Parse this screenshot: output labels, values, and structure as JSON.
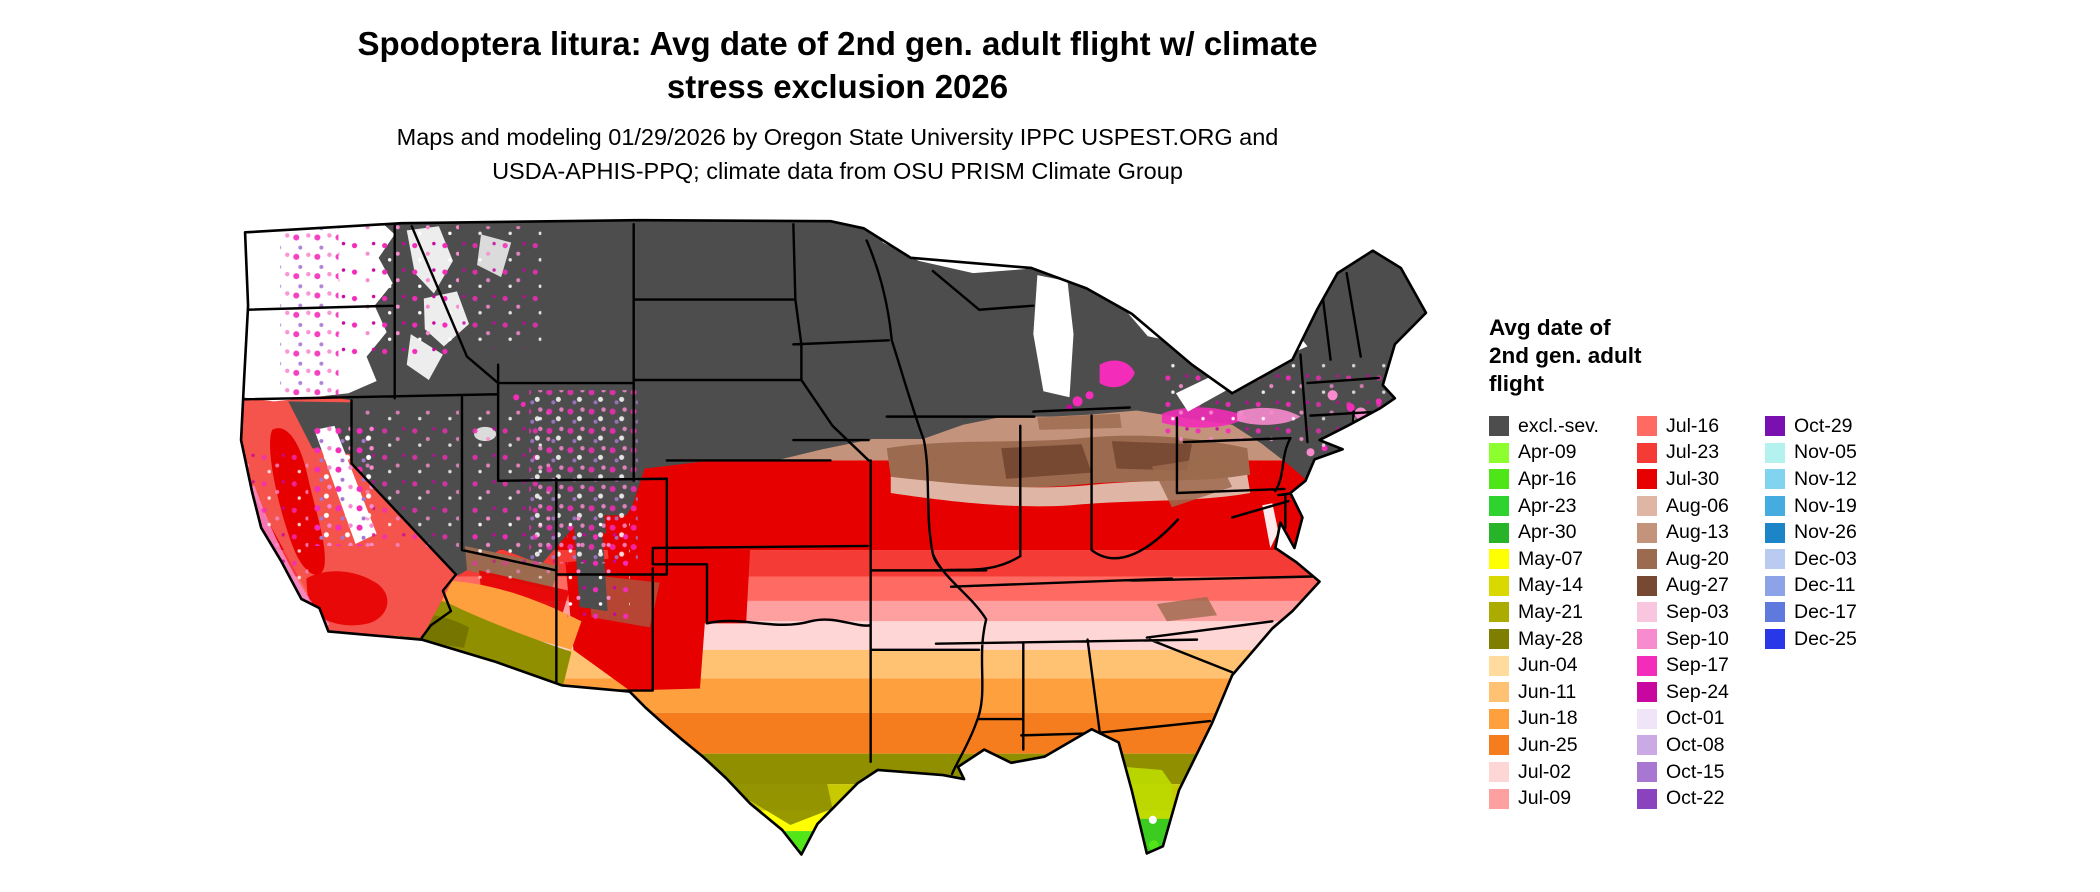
{
  "title": {
    "line1": "Spodoptera litura: Avg date of 2nd gen. adult flight w/ climate",
    "line2": "stress exclusion 2026"
  },
  "subtitle": {
    "line1": "Maps and modeling 01/29/2026 by Oregon State University IPPC USPEST.ORG and",
    "line2": "USDA-APHIS-PPQ; climate data from OSU PRISM Climate Group"
  },
  "map": {
    "type": "choropleth",
    "region": "Contiguous United States",
    "state_border_color": "#000000",
    "water_color": "#ffffff",
    "excluded_color": "#4d4d4d"
  },
  "legend": {
    "title_lines": [
      "Avg date of",
      "2nd gen. adult",
      "flight"
    ],
    "columns": [
      [
        {
          "label": "excl.-sev.",
          "color": "#4d4d4d"
        },
        {
          "label": "Apr-09",
          "color": "#8dff2e"
        },
        {
          "label": "Apr-16",
          "color": "#4fe619"
        },
        {
          "label": "Apr-23",
          "color": "#2f d32f",
          "color_fix": "#2fd32f"
        },
        {
          "label": "Apr-30",
          "color": "#28b428"
        },
        {
          "label": "May-07",
          "color": "#ffff00"
        },
        {
          "label": "May-14",
          "color": "#d9d900"
        },
        {
          "label": "May-21",
          "color": "#acac00"
        },
        {
          "label": "May-28",
          "color": "#7e7e00"
        },
        {
          "label": "Jun-04",
          "color": "#ffdc9e"
        },
        {
          "label": "Jun-11",
          "color": "#ffc272"
        },
        {
          "label": "Jun-18",
          "color": "#ffa03f"
        },
        {
          "label": "Jun-25",
          "color": "#f67d1e"
        },
        {
          "label": "Jul-02",
          "color": "#ffd6d6"
        },
        {
          "label": "Jul-09",
          "color": "#ffa0a0"
        }
      ],
      [
        {
          "label": "Jul-16",
          "color": "#ff6b63"
        },
        {
          "label": "Jul-23",
          "color": "#f53b35"
        },
        {
          "label": "Jul-30",
          "color": "#e60000"
        },
        {
          "label": "Aug-06",
          "color": "#dfb6a5"
        },
        {
          "label": "Aug-13",
          "color": "#c4937c"
        },
        {
          "label": "Aug-20",
          "color": "#9c6a4e"
        },
        {
          "label": "Aug-27",
          "color": "#774832"
        },
        {
          "label": "Sep-03",
          "color": "#f8c7df"
        },
        {
          "label": "Sep-10",
          "color": "#f78bce"
        },
        {
          "label": "Sep-17",
          "color": "#f32cb9"
        },
        {
          "label": "Sep-24",
          "color": "#c7079f"
        },
        {
          "label": "Oct-01",
          "color": "#efe4f8"
        },
        {
          "label": "Oct-08",
          "color": "#cba9e4"
        },
        {
          "label": "Oct-15",
          "color": "#a877d1"
        },
        {
          "label": "Oct-22",
          "color": "#8a42be"
        }
      ],
      [
        {
          "label": "Oct-29",
          "color": "#7a10b0"
        },
        {
          "label": "Nov-05",
          "color": "#b4f2f0"
        },
        {
          "label": "Nov-12",
          "color": "#82d3ef"
        },
        {
          "label": "Nov-19",
          "color": "#45acdf"
        },
        {
          "label": "Nov-26",
          "color": "#1b85c8"
        },
        {
          "label": "Dec-03",
          "color": "#bacbf2"
        },
        {
          "label": "Dec-11",
          "color": "#8ca3e8"
        },
        {
          "label": "Dec-17",
          "color": "#5f7adc"
        },
        {
          "label": "Dec-25",
          "color": "#2837e8"
        }
      ]
    ]
  }
}
